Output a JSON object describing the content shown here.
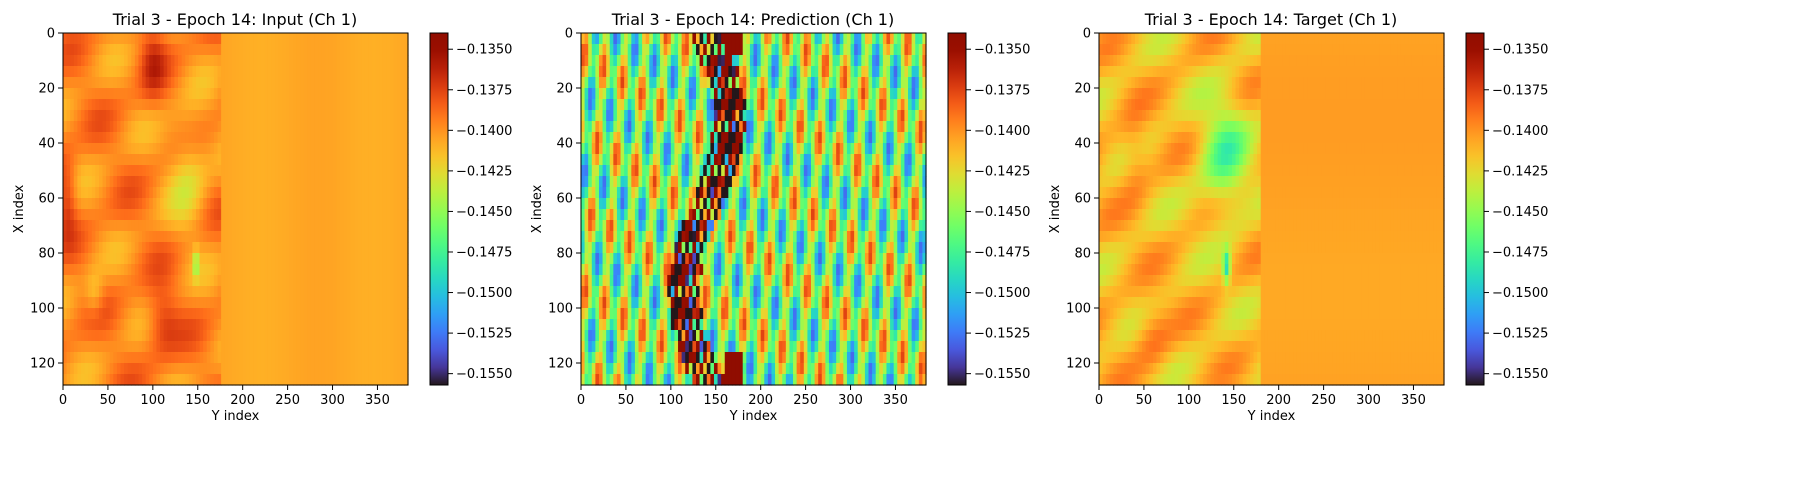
{
  "chart_data": [
    {
      "type": "heatmap",
      "title": "Trial 3 - Epoch 14: Input (Ch 1)",
      "xlabel": "Y index",
      "ylabel": "X index",
      "xlim": [
        0,
        384
      ],
      "ylim": [
        128,
        0
      ],
      "xticks": [
        0,
        50,
        100,
        150,
        200,
        250,
        300,
        350
      ],
      "yticks": [
        0,
        20,
        40,
        60,
        80,
        100,
        120
      ],
      "colormap": "turbo",
      "colorbar": {
        "vmin": -0.1557,
        "vmax": -0.134,
        "ticks": [
          "-0.1350",
          "-0.1375",
          "-0.1400",
          "-0.1425",
          "-0.1450",
          "-0.1475",
          "-0.1500",
          "-0.1525",
          "-0.1550"
        ]
      },
      "field": "input"
    },
    {
      "type": "heatmap",
      "title": "Trial 3 - Epoch 14: Prediction (Ch 1)",
      "xlabel": "Y index",
      "ylabel": "X index",
      "xlim": [
        0,
        384
      ],
      "ylim": [
        128,
        0
      ],
      "xticks": [
        0,
        50,
        100,
        150,
        200,
        250,
        300,
        350
      ],
      "yticks": [
        0,
        20,
        40,
        60,
        80,
        100,
        120
      ],
      "colormap": "turbo",
      "colorbar": {
        "vmin": -0.1557,
        "vmax": -0.134,
        "ticks": [
          "-0.1350",
          "-0.1375",
          "-0.1400",
          "-0.1425",
          "-0.1450",
          "-0.1475",
          "-0.1500",
          "-0.1525",
          "-0.1550"
        ]
      },
      "field": "prediction"
    },
    {
      "type": "heatmap",
      "title": "Trial 3 - Epoch 14: Target (Ch 1)",
      "xlabel": "Y index",
      "ylabel": "X index",
      "xlim": [
        0,
        384
      ],
      "ylim": [
        128,
        0
      ],
      "xticks": [
        0,
        50,
        100,
        150,
        200,
        250,
        300,
        350
      ],
      "yticks": [
        0,
        20,
        40,
        60,
        80,
        100,
        120
      ],
      "colormap": "turbo",
      "colorbar": {
        "vmin": -0.1557,
        "vmax": -0.134,
        "ticks": [
          "-0.1350",
          "-0.1375",
          "-0.1400",
          "-0.1425",
          "-0.1450",
          "-0.1475",
          "-0.1500",
          "-0.1525",
          "-0.1550"
        ]
      },
      "field": "target"
    }
  ]
}
